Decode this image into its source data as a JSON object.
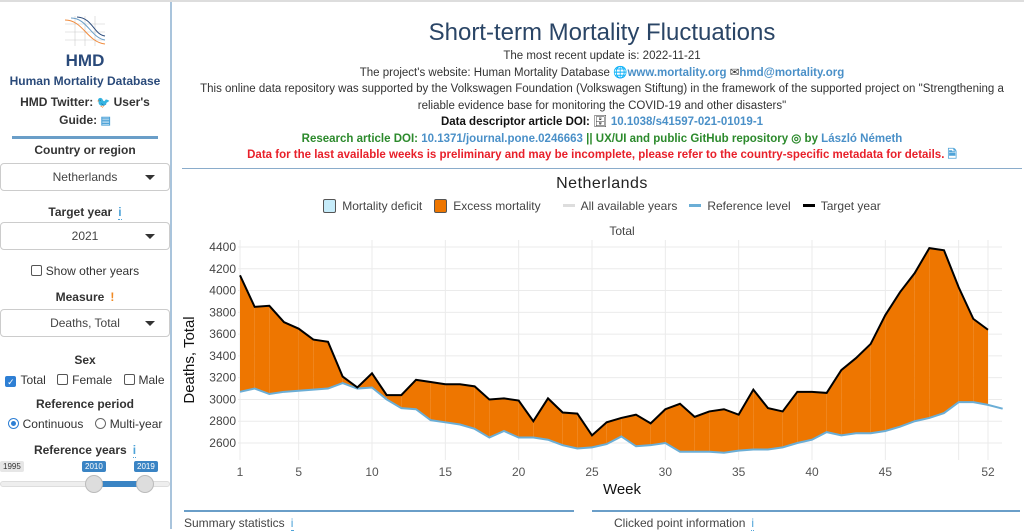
{
  "sidebar": {
    "logo_text": "HMD",
    "org_name": "Human Mortality Database",
    "twitter_label": "HMD Twitter:",
    "guide_label": "User's Guide:",
    "country_label": "Country or region",
    "country_value": "Netherlands",
    "target_year_label": "Target year",
    "target_year_value": "2021",
    "show_other_years": "Show other years",
    "measure_label": "Measure",
    "measure_value": "Deaths, Total",
    "sex_label": "Sex",
    "sex_options": [
      "Total",
      "Female",
      "Male"
    ],
    "sex_selected": "Total",
    "ref_period_label": "Reference period",
    "ref_period_options": [
      "Continuous",
      "Multi-year"
    ],
    "ref_period_selected": "Continuous",
    "ref_years_label": "Reference years",
    "slider": {
      "min": "1995",
      "from": "2010",
      "to": "2019"
    }
  },
  "header": {
    "title": "Short-term Mortality Fluctuations",
    "update": "The most recent update is: 2022-11-21",
    "website_prefix": "The project's website: Human Mortality Database",
    "website_link": "www.mortality.org",
    "email_link": "hmd@mortality.org",
    "support": "This online data repository was supported by the Volkswagen Foundation (Volkswagen Stiftung) in the framework of the supported project on \"Strengthening a reliable evidence base for monitoring the COVID-19 and other disasters\"",
    "descriptor_label": "Data descriptor article DOI:",
    "descriptor_doi": "10.1038/s41597-021-01019-1",
    "research_label": "Research article DOI:",
    "research_doi": "10.1371/journal.pone.0246663",
    "github_text": "|| UX/UI and public GitHub repository",
    "by": "by",
    "author": "László Németh",
    "warning": "Data for the last available weeks is preliminary and may be incomplete, please refer to the country-specific metadata for details."
  },
  "legend": {
    "deficit": "Mortality deficit",
    "excess": "Excess mortality",
    "all_years": "All available years",
    "reference": "Reference level",
    "target": "Target year"
  },
  "colors": {
    "excess": "#ee7600",
    "deficit": "#c6ecfa",
    "reference": "#6baed6",
    "target": "#000000",
    "accent": "#6a9ec8"
  },
  "chart_data": {
    "type": "area",
    "title": "Netherlands",
    "subtitle": "Total",
    "xlabel": "Week",
    "ylabel": "Deaths, Total",
    "xticks": [
      1,
      5,
      10,
      15,
      20,
      25,
      30,
      35,
      40,
      45,
      52
    ],
    "yticks": [
      2600,
      2800,
      3000,
      3200,
      3400,
      3600,
      3800,
      4000,
      4200,
      4400
    ],
    "xlim": [
      1,
      53
    ],
    "ylim": [
      2460,
      4460
    ],
    "grid": true,
    "legend_position": "top",
    "series": [
      {
        "name": "Target year",
        "values": [
          4140,
          3850,
          3860,
          3710,
          3650,
          3550,
          3530,
          3210,
          3110,
          3240,
          3040,
          3040,
          3180,
          3160,
          3140,
          3140,
          3120,
          3000,
          3010,
          2990,
          2800,
          3010,
          2880,
          2870,
          2670,
          2790,
          2830,
          2860,
          2780,
          2910,
          2960,
          2840,
          2890,
          2910,
          2860,
          3090,
          2920,
          2890,
          3070,
          3070,
          3060,
          3270,
          3380,
          3510,
          3775,
          3985,
          4160,
          4390,
          4370,
          4030,
          3740,
          3640
        ]
      },
      {
        "name": "Reference level",
        "values": [
          3070,
          3100,
          3050,
          3070,
          3080,
          3090,
          3100,
          3150,
          3100,
          3110,
          3000,
          2920,
          2910,
          2810,
          2790,
          2770,
          2730,
          2650,
          2710,
          2650,
          2650,
          2630,
          2580,
          2550,
          2560,
          2590,
          2660,
          2570,
          2580,
          2600,
          2520,
          2520,
          2520,
          2510,
          2530,
          2540,
          2540,
          2560,
          2600,
          2630,
          2700,
          2670,
          2690,
          2690,
          2710,
          2750,
          2800,
          2830,
          2875,
          2975,
          2975,
          2950,
          2915
        ]
      }
    ]
  },
  "bottom": {
    "summary": "Summary statistics",
    "clicked": "Clicked point information"
  }
}
